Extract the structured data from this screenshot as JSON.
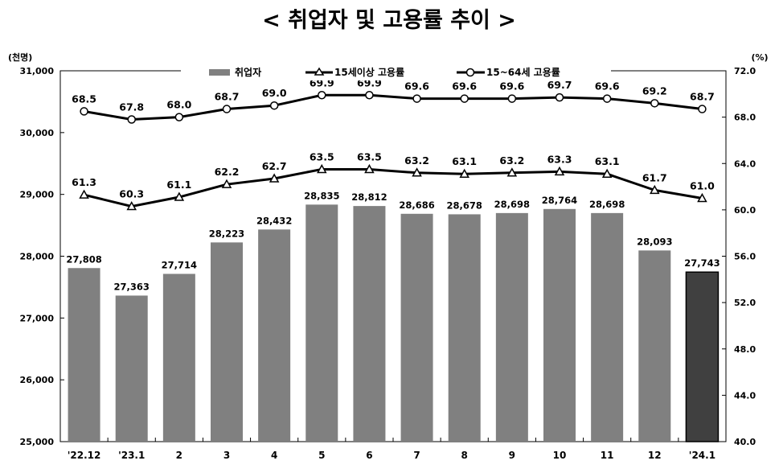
{
  "chart_data": {
    "type": "bar",
    "title": "< 취업자 및 고용률 추이 >",
    "y_left_unit": "(천명)",
    "y_right_unit": "(%)",
    "categories": [
      "'22.12",
      "'23.1",
      "2",
      "3",
      "4",
      "5",
      "6",
      "7",
      "8",
      "9",
      "10",
      "11",
      "12",
      "'24.1"
    ],
    "y_left": {
      "ylim": [
        25000,
        31000
      ],
      "ticks": [
        "25,000",
        "26,000",
        "27,000",
        "28,000",
        "29,000",
        "30,000",
        "31,000"
      ]
    },
    "y_right": {
      "ylim": [
        40.0,
        72.0
      ],
      "ticks": [
        "40.0",
        "44.0",
        "48.0",
        "52.0",
        "56.0",
        "60.0",
        "64.0",
        "68.0",
        "72.0"
      ]
    },
    "bars": {
      "name": "취업자",
      "values": [
        27808,
        27363,
        27714,
        28223,
        28432,
        28835,
        28812,
        28686,
        28678,
        28698,
        28764,
        28698,
        28093,
        27743
      ],
      "labels": [
        "27,808",
        "27,363",
        "27,714",
        "28,223",
        "28,432",
        "28,835",
        "28,812",
        "28,686",
        "28,678",
        "28,698",
        "28,764",
        "28,698",
        "28,093",
        "27,743"
      ],
      "color": "#808080",
      "highlight_color": "#404040"
    },
    "lines": [
      {
        "name": "15세이상 고용률",
        "marker": "triangle",
        "values": [
          61.3,
          60.3,
          61.1,
          62.2,
          62.7,
          63.5,
          63.5,
          63.2,
          63.1,
          63.2,
          63.3,
          63.1,
          61.7,
          61.0
        ],
        "labels": [
          "61.3",
          "60.3",
          "61.1",
          "62.2",
          "62.7",
          "63.5",
          "63.5",
          "63.2",
          "63.1",
          "63.2",
          "63.3",
          "63.1",
          "61.7",
          "61.0"
        ]
      },
      {
        "name": "15~64세 고용률",
        "marker": "circle",
        "values": [
          68.5,
          67.8,
          68.0,
          68.7,
          69.0,
          69.9,
          69.9,
          69.6,
          69.6,
          69.6,
          69.7,
          69.6,
          69.2,
          68.7
        ],
        "labels": [
          "68.5",
          "67.8",
          "68.0",
          "68.7",
          "69.0",
          "69.9",
          "69.9",
          "69.6",
          "69.6",
          "69.6",
          "69.7",
          "69.6",
          "69.2",
          "68.7"
        ]
      }
    ],
    "legend_position": "top",
    "grid": false
  }
}
